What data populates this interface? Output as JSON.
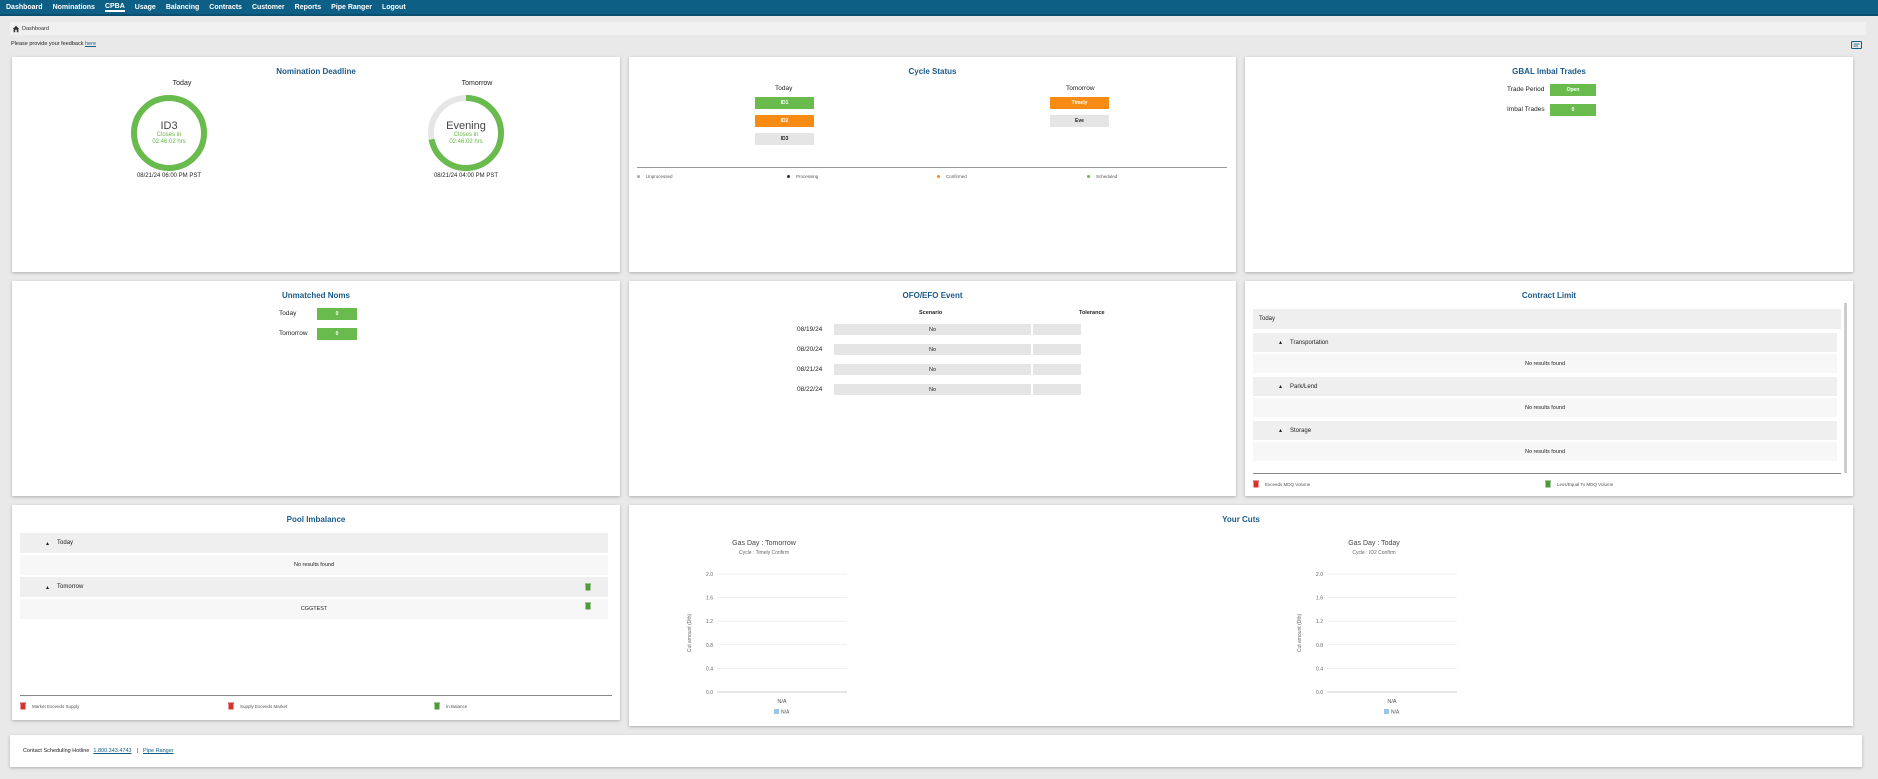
{
  "nav": [
    "Dashboard",
    "Nominations",
    "CPBA",
    "Usage",
    "Balancing",
    "Contracts",
    "Customer",
    "Reports",
    "Pipe Ranger",
    "Logout"
  ],
  "active_nav": "CPBA",
  "breadcrumb": "Dashboard",
  "feedback": {
    "text": "Please provide your feedback",
    "link": "here"
  },
  "nomination_deadline": {
    "title": "Nomination Deadline",
    "today": {
      "label": "Today",
      "cycle": "ID3",
      "closes": "Closes in",
      "time": "02:46:02 hrs",
      "deadline": "08/21/24 06:00 PM PST",
      "progress": 1.0
    },
    "tomorrow": {
      "label": "Tomorrow",
      "cycle": "Evening",
      "closes": "Closes in",
      "time": "02:46:02 hrs",
      "deadline": "08/21/24 04:00 PM PST",
      "progress": 0.72
    }
  },
  "cycle_status": {
    "title": "Cycle Status",
    "today_label": "Today",
    "tomorrow_label": "Tomorrow",
    "today": [
      {
        "label": "ID1",
        "color": "#69bb4d"
      },
      {
        "label": "ID2",
        "color": "#f78b14"
      },
      {
        "label": "ID3",
        "color": "#e5e5e5"
      }
    ],
    "tomorrow": [
      {
        "label": "Timely",
        "color": "#f78b14"
      },
      {
        "label": "Eve",
        "color": "#e5e5e5"
      }
    ],
    "legend": [
      {
        "label": "Unprocessed",
        "color": "#aaaaaa"
      },
      {
        "label": "Processing",
        "color": "#333333"
      },
      {
        "label": "Confirmed",
        "color": "#f78b14"
      },
      {
        "label": "Scheduled",
        "color": "#69bb4d"
      }
    ]
  },
  "gbal": {
    "title": "GBAL Imbal Trades",
    "rows": [
      {
        "label": "Trade Period",
        "value": "Open"
      },
      {
        "label": "Imbal Trades",
        "value": "0"
      }
    ]
  },
  "unmatched": {
    "title": "Unmatched Noms",
    "rows": [
      {
        "label": "Today",
        "value": "0"
      },
      {
        "label": "Tomorrow",
        "value": "0"
      }
    ]
  },
  "ofo": {
    "title": "OFO/EFO Event",
    "col_scenario": "Scenario",
    "col_tolerance": "Tolerance",
    "rows": [
      {
        "date": "08/19/24",
        "scenario": "No",
        "tolerance": ""
      },
      {
        "date": "08/20/24",
        "scenario": "No",
        "tolerance": ""
      },
      {
        "date": "08/21/24",
        "scenario": "No",
        "tolerance": ""
      },
      {
        "date": "08/22/24",
        "scenario": "No",
        "tolerance": ""
      }
    ]
  },
  "contract_limit": {
    "title": "Contract Limit",
    "today": "Today",
    "sections": [
      {
        "name": "Transportation",
        "result": "No results found"
      },
      {
        "name": "Park/Lend",
        "result": "No results found"
      },
      {
        "name": "Storage",
        "result": "No results found"
      }
    ],
    "legend": [
      "Exceeds MDQ Volume",
      "Less/Equal To MDQ Volume"
    ]
  },
  "pool_imbalance": {
    "title": "Pool Imbalance",
    "today": "Today",
    "today_result": "No results found",
    "tomorrow": "Tomorrow",
    "tomorrow_item": "CGGTEST",
    "legend": [
      "Market Exceeds Supply",
      "Supply Exceeds Market",
      "In Balance"
    ]
  },
  "cuts": {
    "title": "Your Cuts",
    "chart_data": [
      {
        "type": "bar",
        "title": "Gas Day : Tomorrow",
        "subtitle": "Cycle : Timely Confirm",
        "ylabel": "Cut amount (Dth)",
        "categories": [
          "N/A"
        ],
        "series": [
          {
            "name": "N/A",
            "values": [
              0
            ]
          }
        ],
        "ylim": [
          0,
          2.0
        ],
        "yticks": [
          "2.0",
          "1.6",
          "1.2",
          "0.8",
          "0.4",
          "0.0"
        ]
      },
      {
        "type": "bar",
        "title": "Gas Day : Today",
        "subtitle": "Cycle : ID2 Confirm",
        "ylabel": "Cut amount (Dth)",
        "categories": [
          "N/A"
        ],
        "series": [
          {
            "name": "N/A",
            "values": [
              0
            ]
          }
        ],
        "ylim": [
          0,
          2.0
        ],
        "yticks": [
          "2.0",
          "1.6",
          "1.2",
          "0.8",
          "0.4",
          "0.0"
        ]
      }
    ]
  },
  "footer": {
    "label": "Contact Scheduling Hotline",
    "phone": "1.800.343.4743",
    "sep": "|",
    "link": "Pipe Ranger"
  },
  "colors": {
    "brand": "#0d5f86",
    "title": "#1b5a8a",
    "green": "#69bb4d",
    "orange": "#f78b14"
  }
}
